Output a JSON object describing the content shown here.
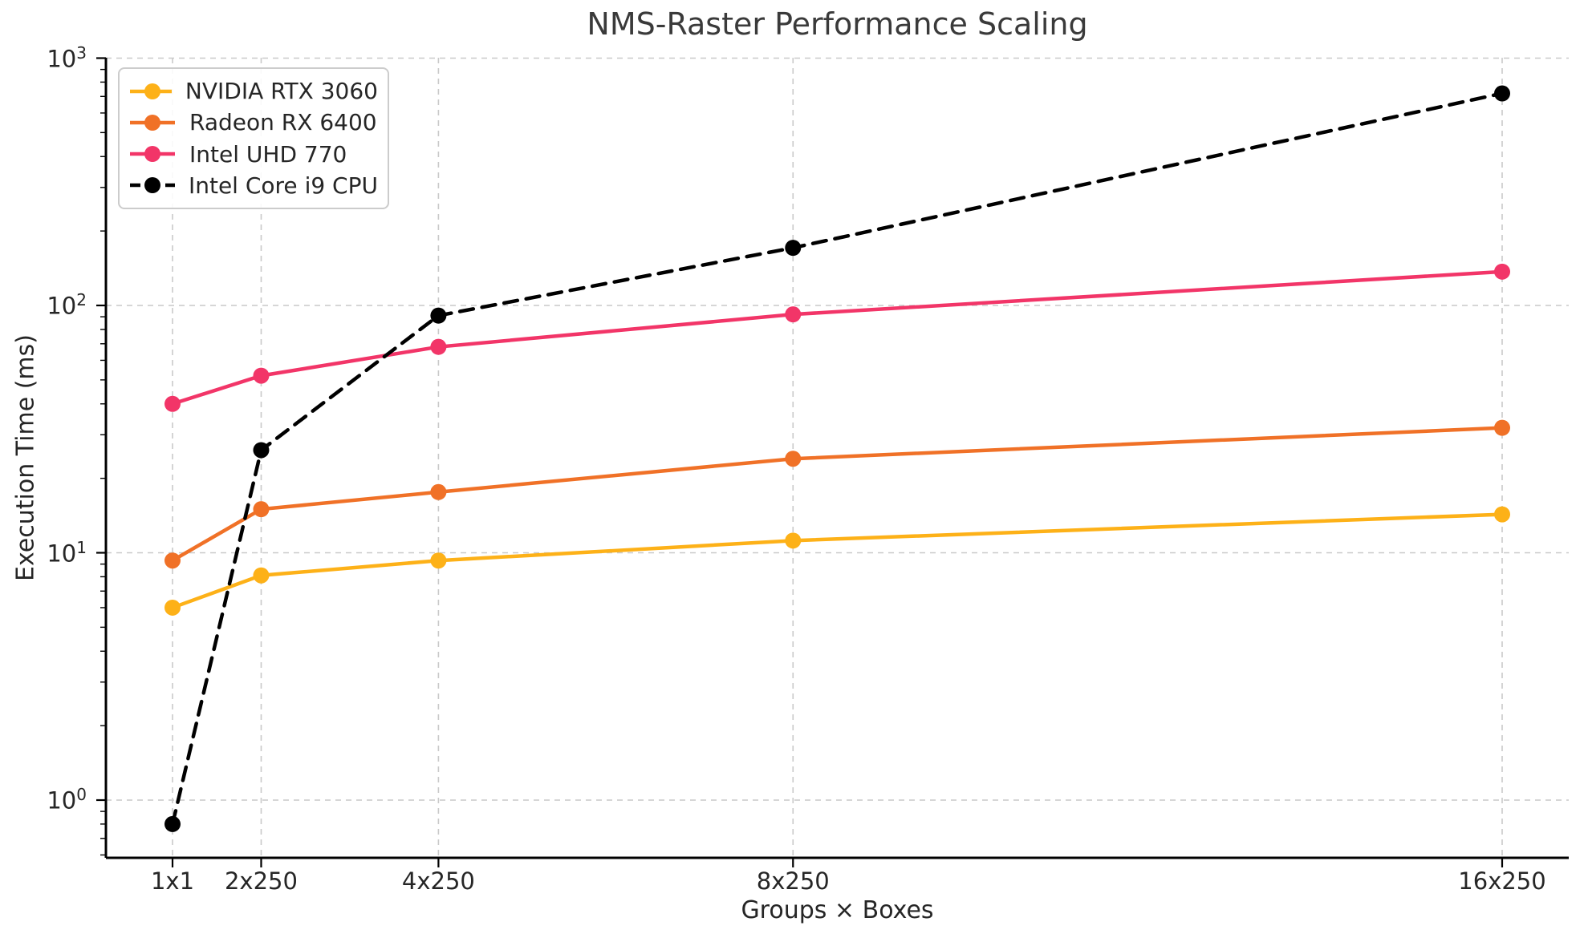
{
  "chart_data": {
    "type": "line",
    "title": "NMS-Raster Performance Scaling",
    "xlabel": "Groups × Boxes",
    "ylabel": "Execution Time (ms)",
    "x_scale": "linear in group count",
    "y_scale": "log10",
    "ylim": [
      0.58,
      1000
    ],
    "x_groups": [
      1,
      2,
      4,
      8,
      16
    ],
    "x_tick_labels": [
      "1x1",
      "2x250",
      "4x250",
      "8x250",
      "16x250"
    ],
    "y_tick_exponents": [
      0,
      1,
      2,
      3
    ],
    "grid": "dashed light-gray at major ticks, both axes",
    "legend_position": "upper left",
    "series": [
      {
        "name": "NVIDIA RTX 3060",
        "color": "#FDB118",
        "line_style": "solid",
        "marker": "circle",
        "values_ms": [
          6.0,
          8.1,
          9.3,
          11.2,
          14.3
        ]
      },
      {
        "name": "Radeon RX 6400",
        "color": "#F07127",
        "line_style": "solid",
        "marker": "circle",
        "values_ms": [
          9.3,
          15.0,
          17.6,
          24.0,
          32.0
        ]
      },
      {
        "name": "Intel UHD 770",
        "color": "#F23568",
        "line_style": "solid",
        "marker": "circle",
        "values_ms": [
          40,
          52,
          68,
          92,
          137
        ]
      },
      {
        "name": "Intel Core i9 CPU",
        "color": "#000000",
        "line_style": "dashed",
        "marker": "circle",
        "values_ms": [
          0.8,
          26,
          91,
          171,
          720
        ]
      }
    ],
    "colors": {
      "grid": "#c9c9c9",
      "spine": "#000000",
      "text": "#262626",
      "title": "#3a3a3a",
      "legend_border": "#cccccc",
      "background": "#ffffff"
    }
  }
}
